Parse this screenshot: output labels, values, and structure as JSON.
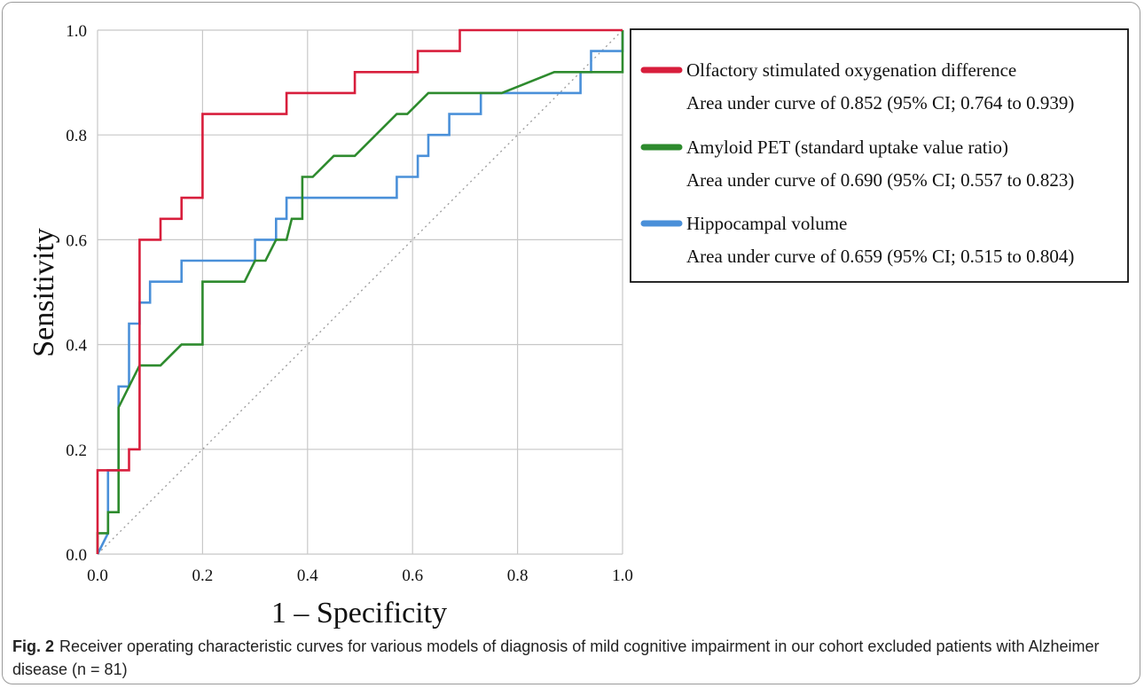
{
  "figure": {
    "label": "Fig. 2",
    "caption": "Receiver operating characteristic curves for various models of diagnosis of mild cognitive impairment in our cohort excluded patients with Alzheimer disease (n = 81)"
  },
  "chart_data": {
    "type": "line",
    "title": "",
    "xlabel": "1 – Specificity",
    "ylabel": "Sensitivity",
    "xlim": [
      0,
      1
    ],
    "ylim": [
      0,
      1
    ],
    "xticks": [
      "0.0",
      "0.2",
      "0.4",
      "0.6",
      "0.8",
      "1.0"
    ],
    "yticks": [
      "0.0",
      "0.2",
      "0.4",
      "0.6",
      "0.8",
      "1.0"
    ],
    "grid": true,
    "legend_position": "top-right",
    "reference_line": {
      "style": "dotted",
      "color": "#9a9a9a",
      "from": [
        0,
        0
      ],
      "to": [
        1,
        1
      ]
    },
    "series": [
      {
        "name": "Olfactory stimulated oxygenation difference",
        "detail": "Area under curve of 0.852 (95% CI; 0.764 to 0.939)",
        "color": "#d81e3c",
        "points": [
          [
            0,
            0
          ],
          [
            0,
            0.16
          ],
          [
            0.04,
            0.16
          ],
          [
            0.04,
            0.16
          ],
          [
            0.06,
            0.16
          ],
          [
            0.06,
            0.2
          ],
          [
            0.08,
            0.2
          ],
          [
            0.08,
            0.6
          ],
          [
            0.12,
            0.6
          ],
          [
            0.12,
            0.64
          ],
          [
            0.16,
            0.64
          ],
          [
            0.16,
            0.68
          ],
          [
            0.2,
            0.68
          ],
          [
            0.2,
            0.84
          ],
          [
            0.36,
            0.84
          ],
          [
            0.36,
            0.88
          ],
          [
            0.49,
            0.88
          ],
          [
            0.49,
            0.92
          ],
          [
            0.61,
            0.92
          ],
          [
            0.61,
            0.96
          ],
          [
            0.69,
            0.96
          ],
          [
            0.69,
            1.0
          ],
          [
            1.0,
            1.0
          ]
        ]
      },
      {
        "name": "Amyloid PET (standard uptake value ratio)",
        "detail": "Area under curve of 0.690 (95% CI; 0.557 to 0.823)",
        "color": "#2e8b2e",
        "points": [
          [
            0,
            0
          ],
          [
            0,
            0.04
          ],
          [
            0.02,
            0.04
          ],
          [
            0.02,
            0.08
          ],
          [
            0.04,
            0.08
          ],
          [
            0.04,
            0.28
          ],
          [
            0.06,
            0.32
          ],
          [
            0.08,
            0.36
          ],
          [
            0.12,
            0.36
          ],
          [
            0.16,
            0.4
          ],
          [
            0.2,
            0.4
          ],
          [
            0.2,
            0.52
          ],
          [
            0.28,
            0.52
          ],
          [
            0.3,
            0.56
          ],
          [
            0.32,
            0.56
          ],
          [
            0.34,
            0.6
          ],
          [
            0.36,
            0.6
          ],
          [
            0.37,
            0.64
          ],
          [
            0.39,
            0.64
          ],
          [
            0.39,
            0.72
          ],
          [
            0.41,
            0.72
          ],
          [
            0.45,
            0.76
          ],
          [
            0.49,
            0.76
          ],
          [
            0.57,
            0.84
          ],
          [
            0.59,
            0.84
          ],
          [
            0.63,
            0.88
          ],
          [
            0.77,
            0.88
          ],
          [
            0.87,
            0.92
          ],
          [
            0.92,
            0.92
          ],
          [
            1.0,
            0.92
          ],
          [
            1.0,
            1.0
          ]
        ]
      },
      {
        "name": "Hippocampal volume",
        "detail": "Area under curve of 0.659 (95% CI; 0.515 to 0.804)",
        "color": "#4a90d9",
        "points": [
          [
            0,
            0
          ],
          [
            0.02,
            0.04
          ],
          [
            0.02,
            0.16
          ],
          [
            0.04,
            0.16
          ],
          [
            0.04,
            0.32
          ],
          [
            0.06,
            0.32
          ],
          [
            0.06,
            0.44
          ],
          [
            0.08,
            0.44
          ],
          [
            0.08,
            0.48
          ],
          [
            0.1,
            0.48
          ],
          [
            0.1,
            0.52
          ],
          [
            0.16,
            0.52
          ],
          [
            0.16,
            0.56
          ],
          [
            0.3,
            0.56
          ],
          [
            0.3,
            0.6
          ],
          [
            0.34,
            0.6
          ],
          [
            0.34,
            0.64
          ],
          [
            0.36,
            0.64
          ],
          [
            0.36,
            0.68
          ],
          [
            0.57,
            0.68
          ],
          [
            0.57,
            0.72
          ],
          [
            0.61,
            0.72
          ],
          [
            0.61,
            0.76
          ],
          [
            0.63,
            0.76
          ],
          [
            0.63,
            0.8
          ],
          [
            0.67,
            0.8
          ],
          [
            0.67,
            0.84
          ],
          [
            0.73,
            0.84
          ],
          [
            0.73,
            0.88
          ],
          [
            0.92,
            0.88
          ],
          [
            0.92,
            0.92
          ],
          [
            0.94,
            0.92
          ],
          [
            0.94,
            0.96
          ],
          [
            1.0,
            0.96
          ],
          [
            1.0,
            1.0
          ]
        ]
      }
    ]
  }
}
